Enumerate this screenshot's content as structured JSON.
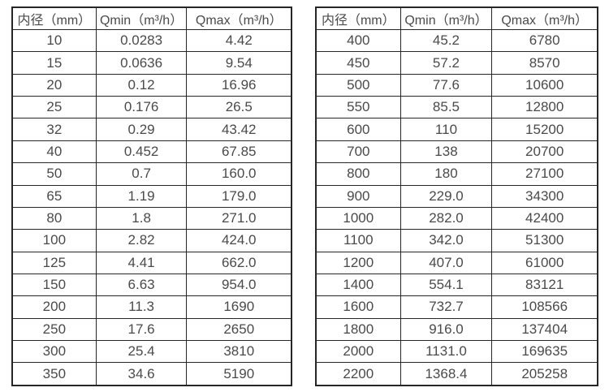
{
  "colors": {
    "background": "#ffffff",
    "border": "#262626",
    "text": "#4a4a4a"
  },
  "tables": [
    {
      "name": "flow-table-small-diameters",
      "headers": [
        "内径（mm）",
        "Qmin（m³/h）",
        "Qmax（m³/h）"
      ],
      "rows": [
        [
          "10",
          "0.0283",
          "4.42"
        ],
        [
          "15",
          "0.0636",
          "9.54"
        ],
        [
          "20",
          "0.12",
          "16.96"
        ],
        [
          "25",
          "0.176",
          "26.5"
        ],
        [
          "32",
          "0.29",
          "43.42"
        ],
        [
          "40",
          "0.452",
          "67.85"
        ],
        [
          "50",
          "0.7",
          "160.0"
        ],
        [
          "65",
          "1.19",
          "179.0"
        ],
        [
          "80",
          "1.8",
          "271.0"
        ],
        [
          "100",
          "2.82",
          "424.0"
        ],
        [
          "125",
          "4.41",
          "662.0"
        ],
        [
          "150",
          "6.63",
          "954.0"
        ],
        [
          "200",
          "11.3",
          "1690"
        ],
        [
          "250",
          "17.6",
          "2650"
        ],
        [
          "300",
          "25.4",
          "3810"
        ],
        [
          "350",
          "34.6",
          "5190"
        ]
      ]
    },
    {
      "name": "flow-table-large-diameters",
      "headers": [
        "内径（mm）",
        "Qmin（m³/h）",
        "Qmax（m³/h）"
      ],
      "rows": [
        [
          "400",
          "45.2",
          "6780"
        ],
        [
          "450",
          "57.2",
          "8570"
        ],
        [
          "500",
          "77.6",
          "10600"
        ],
        [
          "550",
          "85.5",
          "12800"
        ],
        [
          "600",
          "110",
          "15200"
        ],
        [
          "700",
          "138",
          "20700"
        ],
        [
          "800",
          "180",
          "27100"
        ],
        [
          "900",
          "229.0",
          "34300"
        ],
        [
          "1000",
          "282.0",
          "42400"
        ],
        [
          "1100",
          "342.0",
          "51300"
        ],
        [
          "1200",
          "407.0",
          "61000"
        ],
        [
          "1400",
          "554.1",
          "83121"
        ],
        [
          "1600",
          "732.7",
          "108566"
        ],
        [
          "1800",
          "916.0",
          "137404"
        ],
        [
          "2000",
          "1131.0",
          "169635"
        ],
        [
          "2200",
          "1368.4",
          "205258"
        ]
      ]
    }
  ]
}
